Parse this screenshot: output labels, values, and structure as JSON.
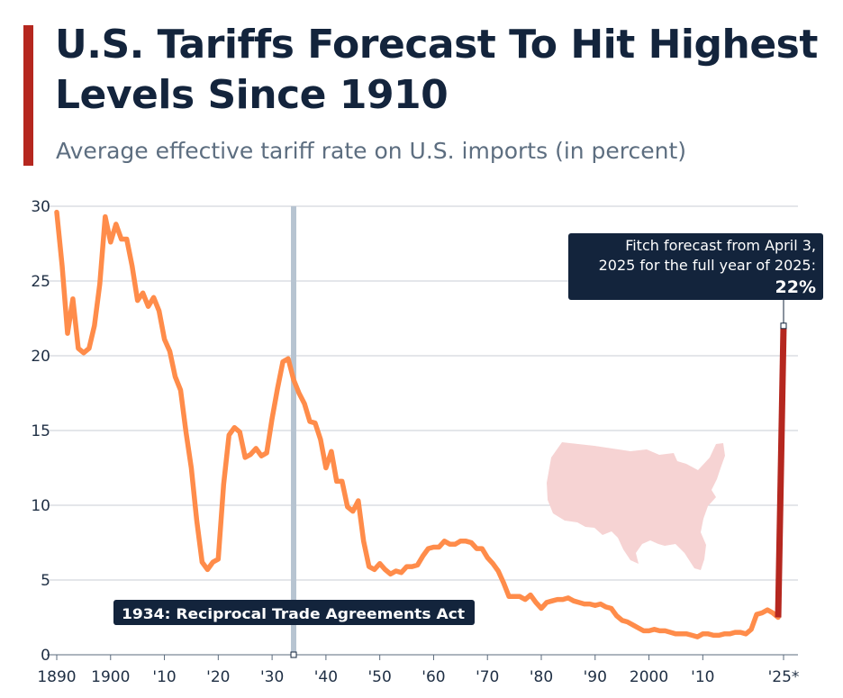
{
  "header": {
    "title": "U.S. Tariffs Forecast To Hit Highest Levels Since 1910",
    "subtitle": "Average effective tariff rate on U.S. imports (in percent)"
  },
  "colors": {
    "accent": "#b5271f",
    "line": "#ff8c4a",
    "forecast": "#b5271f",
    "dark": "#13243c",
    "grid": "#c9ced6",
    "highlight": "#b7c4d1",
    "map": "#f6d3d3"
  },
  "icons": {
    "map": "us-map-icon"
  },
  "chart_data": {
    "type": "line",
    "title": "U.S. Tariffs Forecast To Hit Highest Levels Since 1910",
    "subtitle": "Average effective tariff rate on U.S. imports (in percent)",
    "xlabel": "",
    "ylabel": "",
    "xlim": [
      1890,
      2025
    ],
    "ylim": [
      0,
      30
    ],
    "grid": true,
    "y_ticks": [
      0,
      5,
      10,
      15,
      20,
      25,
      30
    ],
    "x_ticks": [
      {
        "value": 1890,
        "label": "1890"
      },
      {
        "value": 1900,
        "label": "1900"
      },
      {
        "value": 1910,
        "label": "'10"
      },
      {
        "value": 1920,
        "label": "'20"
      },
      {
        "value": 1930,
        "label": "'30"
      },
      {
        "value": 1940,
        "label": "'40"
      },
      {
        "value": 1950,
        "label": "'50"
      },
      {
        "value": 1960,
        "label": "'60"
      },
      {
        "value": 1970,
        "label": "'70"
      },
      {
        "value": 1980,
        "label": "'80"
      },
      {
        "value": 1990,
        "label": "'90"
      },
      {
        "value": 2000,
        "label": "2000"
      },
      {
        "value": 2010,
        "label": "'10"
      },
      {
        "value": 2025,
        "label": "'25*"
      }
    ],
    "series": [
      {
        "name": "Average effective tariff rate",
        "x": [
          1890,
          1891,
          1892,
          1893,
          1894,
          1895,
          1896,
          1897,
          1898,
          1899,
          1900,
          1901,
          1902,
          1903,
          1904,
          1905,
          1906,
          1907,
          1908,
          1909,
          1910,
          1911,
          1912,
          1913,
          1914,
          1915,
          1916,
          1917,
          1918,
          1919,
          1920,
          1921,
          1922,
          1923,
          1924,
          1925,
          1926,
          1927,
          1928,
          1929,
          1930,
          1931,
          1932,
          1933,
          1934,
          1935,
          1936,
          1937,
          1938,
          1939,
          1940,
          1941,
          1942,
          1943,
          1944,
          1945,
          1946,
          1947,
          1948,
          1949,
          1950,
          1951,
          1952,
          1953,
          1954,
          1955,
          1956,
          1957,
          1958,
          1959,
          1960,
          1961,
          1962,
          1963,
          1964,
          1965,
          1966,
          1967,
          1968,
          1969,
          1970,
          1971,
          1972,
          1973,
          1974,
          1975,
          1976,
          1977,
          1978,
          1979,
          1980,
          1981,
          1982,
          1983,
          1984,
          1985,
          1986,
          1987,
          1988,
          1989,
          1990,
          1991,
          1992,
          1993,
          1994,
          1995,
          1996,
          1997,
          1998,
          1999,
          2000,
          2001,
          2002,
          2003,
          2004,
          2005,
          2006,
          2007,
          2008,
          2009,
          2010,
          2011,
          2012,
          2013,
          2014,
          2015,
          2016,
          2017,
          2018,
          2019,
          2020,
          2021,
          2022,
          2023,
          2024
        ],
        "values": [
          29.6,
          26.0,
          21.5,
          23.8,
          20.5,
          20.2,
          20.5,
          22.0,
          24.8,
          29.3,
          27.6,
          28.8,
          27.8,
          27.8,
          26.0,
          23.7,
          24.2,
          23.3,
          23.9,
          23.0,
          21.1,
          20.3,
          18.6,
          17.7,
          14.9,
          12.5,
          9.0,
          6.2,
          5.7,
          6.2,
          6.4,
          11.4,
          14.7,
          15.2,
          14.9,
          13.2,
          13.4,
          13.8,
          13.3,
          13.5,
          15.8,
          17.8,
          19.6,
          19.8,
          18.4,
          17.5,
          16.8,
          15.6,
          15.5,
          14.4,
          12.5,
          13.6,
          11.6,
          11.6,
          9.9,
          9.6,
          10.3,
          7.6,
          5.9,
          5.7,
          6.1,
          5.7,
          5.4,
          5.6,
          5.5,
          5.9,
          5.9,
          6.0,
          6.6,
          7.1,
          7.2,
          7.2,
          7.6,
          7.4,
          7.4,
          7.6,
          7.6,
          7.5,
          7.1,
          7.1,
          6.5,
          6.1,
          5.6,
          4.8,
          3.9,
          3.9,
          3.9,
          3.7,
          4.0,
          3.5,
          3.1,
          3.5,
          3.6,
          3.7,
          3.7,
          3.8,
          3.6,
          3.5,
          3.4,
          3.4,
          3.3,
          3.4,
          3.2,
          3.1,
          2.6,
          2.3,
          2.2,
          2.0,
          1.8,
          1.6,
          1.6,
          1.7,
          1.6,
          1.6,
          1.5,
          1.4,
          1.4,
          1.4,
          1.3,
          1.2,
          1.4,
          1.4,
          1.3,
          1.3,
          1.4,
          1.4,
          1.5,
          1.5,
          1.4,
          1.7,
          2.7,
          2.8,
          3.0,
          2.8,
          2.5
        ]
      },
      {
        "name": "Fitch forecast",
        "x": [
          2024,
          2025
        ],
        "values": [
          2.5,
          22
        ]
      }
    ],
    "annotations": [
      {
        "x": 1934,
        "label": "1934: Reciprocal Trade Agreements Act"
      },
      {
        "x": 2025,
        "y": 22,
        "line1": "Fitch forecast from April 3,",
        "line2": "2025 for the full year of 2025:",
        "value_label": "22%"
      }
    ]
  }
}
